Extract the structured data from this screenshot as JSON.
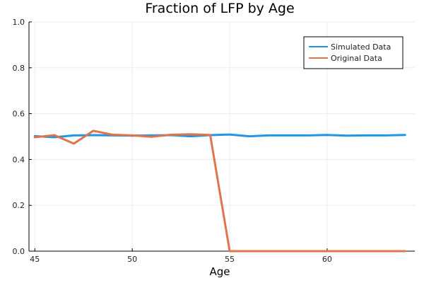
{
  "chart_data": {
    "type": "line",
    "title": "Fraction of LFP by Age",
    "xlabel": "Age",
    "ylabel": "",
    "xlim": [
      44.7,
      64.5
    ],
    "ylim": [
      0.0,
      1.0
    ],
    "xticks": [
      45,
      50,
      55,
      60
    ],
    "yticks": [
      0.0,
      0.2,
      0.4,
      0.6,
      0.8,
      1.0
    ],
    "xtick_labels": [
      "45",
      "50",
      "55",
      "60"
    ],
    "ytick_labels": [
      "0.0",
      "0.2",
      "0.4",
      "0.6",
      "0.8",
      "1.0"
    ],
    "grid": true,
    "legend_position": "top-right",
    "x": [
      45,
      46,
      47,
      48,
      49,
      50,
      51,
      52,
      53,
      54,
      55,
      56,
      57,
      58,
      59,
      60,
      61,
      62,
      63,
      64
    ],
    "series": [
      {
        "name": "Simulated Data",
        "color": "#1f96e8",
        "values": [
          0.502,
          0.497,
          0.505,
          0.506,
          0.505,
          0.504,
          0.505,
          0.506,
          0.501,
          0.506,
          0.509,
          0.501,
          0.505,
          0.505,
          0.505,
          0.507,
          0.504,
          0.505,
          0.505,
          0.507
        ]
      },
      {
        "name": "Original Data",
        "color": "#e0744a",
        "values": [
          0.497,
          0.506,
          0.469,
          0.525,
          0.508,
          0.505,
          0.499,
          0.508,
          0.51,
          0.507,
          0.0,
          0.0,
          0.0,
          0.0,
          0.0,
          0.0,
          0.0,
          0.0,
          0.0,
          0.0
        ]
      }
    ]
  }
}
